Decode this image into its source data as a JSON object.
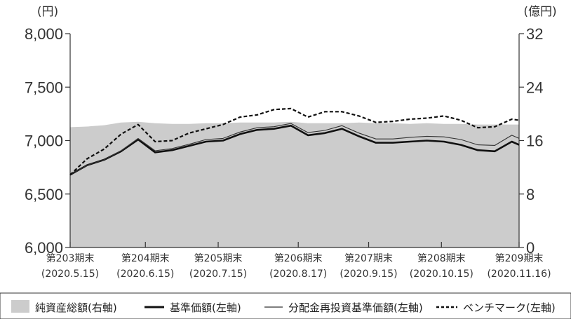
{
  "chart_data": {
    "type": "line",
    "left_unit": "(円)",
    "right_unit": "(億円)",
    "left_axis": {
      "ylim": [
        6000,
        8000
      ],
      "ticks": [
        "6,000",
        "6,500",
        "7,000",
        "7,500",
        "8,000"
      ]
    },
    "right_axis": {
      "ylim": [
        0,
        32
      ],
      "ticks": [
        "0",
        "8",
        "16",
        "24",
        "32"
      ]
    },
    "x_ticks": [
      {
        "period": "第203期末",
        "date": "(2020.5.15)"
      },
      {
        "period": "第204期末",
        "date": "(2020.6.15)"
      },
      {
        "period": "第205期末",
        "date": "(2020.7.15)"
      },
      {
        "period": "第206期末",
        "date": "(2020.8.17)"
      },
      {
        "period": "第207期末",
        "date": "(2020.9.15)"
      },
      {
        "period": "第208期末",
        "date": "(2020.10.15)"
      },
      {
        "period": "第209期末",
        "date": "(2020.11.16)"
      }
    ],
    "x": [
      "2020-05-15",
      "2020-05-22",
      "2020-05-29",
      "2020-06-05",
      "2020-06-12",
      "2020-06-19",
      "2020-06-26",
      "2020-07-03",
      "2020-07-10",
      "2020-07-17",
      "2020-07-24",
      "2020-07-31",
      "2020-08-07",
      "2020-08-14",
      "2020-08-21",
      "2020-08-28",
      "2020-09-04",
      "2020-09-11",
      "2020-09-18",
      "2020-09-25",
      "2020-10-02",
      "2020-10-09",
      "2020-10-16",
      "2020-10-23",
      "2020-10-30",
      "2020-11-06",
      "2020-11-13",
      "2020-11-16"
    ],
    "series": [
      {
        "name": "純資産総額(右軸)",
        "axis": "right",
        "style": "area",
        "color": "#cccccc",
        "values": [
          18.0,
          18.1,
          18.3,
          18.7,
          18.8,
          18.6,
          18.5,
          18.5,
          18.6,
          18.6,
          18.7,
          18.7,
          18.7,
          18.8,
          18.6,
          18.6,
          18.6,
          18.7,
          18.6,
          18.6,
          18.5,
          18.6,
          18.5,
          18.5,
          18.4,
          18.4,
          18.4,
          18.4
        ]
      },
      {
        "name": "基準価額(左軸)",
        "axis": "left",
        "style": "solid",
        "color": "#111111",
        "values": [
          6680,
          6770,
          6820,
          6900,
          7010,
          6890,
          6910,
          6950,
          6990,
          7000,
          7060,
          7100,
          7110,
          7140,
          7050,
          7070,
          7110,
          7040,
          6980,
          6980,
          6990,
          7000,
          6990,
          6960,
          6910,
          6900,
          6990,
          6960
        ]
      },
      {
        "name": "分配金再投資基準価額(左軸)",
        "axis": "left",
        "style": "thin",
        "color": "#333333",
        "values": [
          6680,
          6770,
          6820,
          6905,
          7020,
          6905,
          6925,
          6965,
          7010,
          7020,
          7080,
          7120,
          7130,
          7160,
          7075,
          7095,
          7140,
          7070,
          7015,
          7015,
          7030,
          7040,
          7035,
          7010,
          6960,
          6955,
          7050,
          7020
        ]
      },
      {
        "name": "ベンチマーク(左軸)",
        "axis": "left",
        "style": "dashed",
        "color": "#111111",
        "values": [
          6680,
          6830,
          6920,
          7060,
          7150,
          6990,
          7000,
          7070,
          7110,
          7150,
          7220,
          7240,
          7290,
          7300,
          7220,
          7270,
          7270,
          7230,
          7170,
          7180,
          7200,
          7210,
          7230,
          7190,
          7120,
          7130,
          7200,
          7190
        ]
      }
    ]
  }
}
